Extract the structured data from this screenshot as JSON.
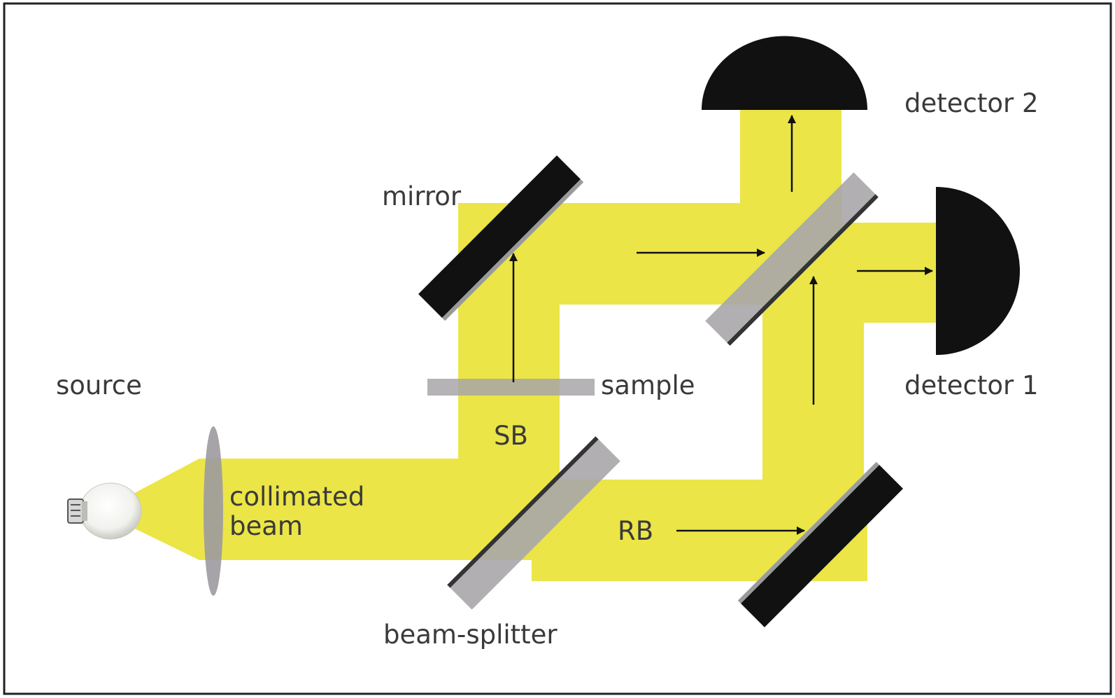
{
  "labels": {
    "source": "source",
    "collimated_line1": "collimated",
    "collimated_line2": "beam",
    "sb": "SB",
    "sample": "sample",
    "mirror": "mirror",
    "rb": "RB",
    "beam_splitter": "beam-splitter",
    "detector_1": "detector 1",
    "detector_2": "detector 2"
  },
  "colors": {
    "beam": "#ebe547",
    "optic_black": "#111111",
    "glass_grey": "#a8a6a8",
    "lens_grey": "#9c9aa0",
    "frame": "#222222"
  }
}
